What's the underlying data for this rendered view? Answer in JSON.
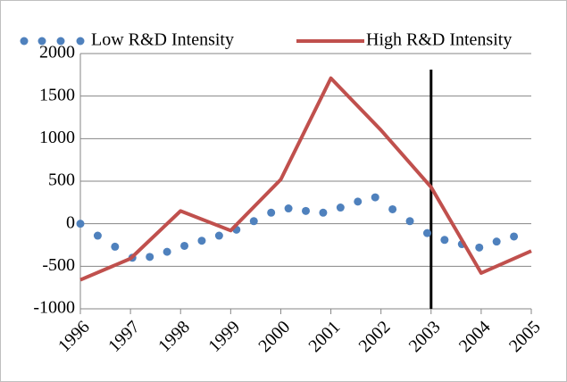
{
  "chart_data": {
    "type": "line",
    "xlim": [
      1996,
      2005
    ],
    "xticks": [
      1996,
      1997,
      1998,
      1999,
      2000,
      2001,
      2002,
      2003,
      2004,
      2005
    ],
    "ylim": [
      -1000,
      2000
    ],
    "yticks": [
      -1000,
      -500,
      0,
      500,
      1000,
      1500,
      2000
    ],
    "grid": true,
    "vline": 2003,
    "series": [
      {
        "name": "Low R&D Intensity",
        "color": "#4f81bd",
        "style": "dots",
        "x": [
          1996,
          1996.346,
          1996.692,
          1997.038,
          1997.385,
          1997.731,
          1998.077,
          1998.423,
          1998.769,
          1999.115,
          1999.462,
          1999.808,
          2000.154,
          2000.5,
          2000.846,
          2001.192,
          2001.538,
          2001.885,
          2002.231,
          2002.577,
          2002.923,
          2003.269,
          2003.615,
          2003.962,
          2004.308,
          2004.654
        ],
        "values": [
          0,
          -140,
          -270,
          -400,
          -390,
          -330,
          -260,
          -200,
          -140,
          -70,
          30,
          130,
          180,
          150,
          130,
          190,
          260,
          310,
          170,
          30,
          -110,
          -190,
          -240,
          -280,
          -210,
          -150
        ]
      },
      {
        "name": "High R&D Intensity",
        "color": "#c0504d",
        "style": "line",
        "x": [
          1996,
          1997,
          1998,
          1999,
          2000,
          2001,
          2002,
          2003,
          2004,
          2005
        ],
        "values": [
          -660,
          -410,
          150,
          -80,
          520,
          1710,
          1100,
          430,
          -580,
          -320
        ]
      }
    ]
  }
}
